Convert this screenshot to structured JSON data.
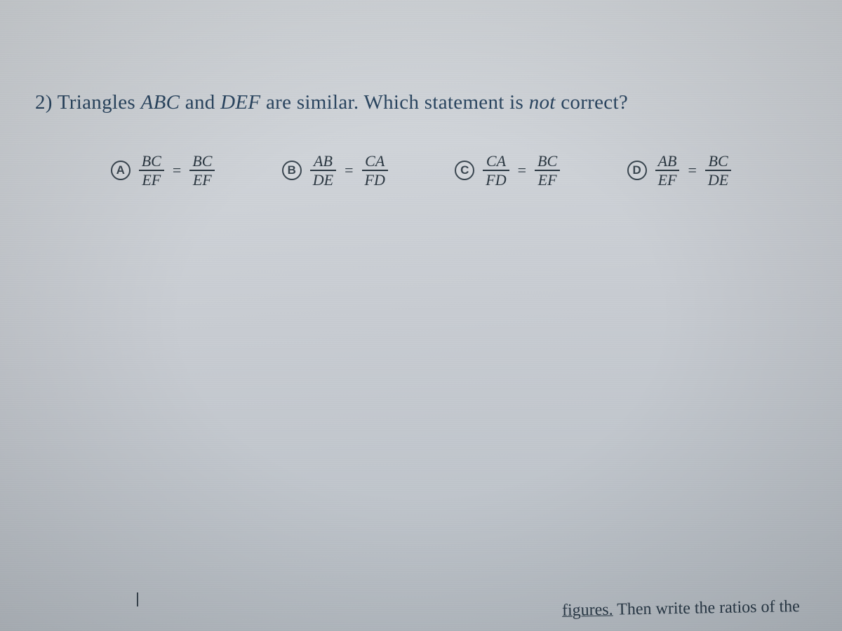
{
  "background_color_top": "#d8dce0",
  "background_color_bottom": "#b8bfc6",
  "text_color_primary": "#2a4560",
  "text_color_math": "#2a3640",
  "marker_border_color": "#3a4650",
  "question": {
    "number": "2)",
    "prefix": "Triangles",
    "t1": "ABC",
    "mid1": "and",
    "t2": "DEF",
    "mid2": "are similar. Which statement is",
    "neg": "not",
    "tail": "correct?",
    "fontsize": 29
  },
  "options": [
    {
      "letter": "A",
      "left_num": "BC",
      "left_den": "EF",
      "right_num": "BC",
      "right_den": "EF"
    },
    {
      "letter": "B",
      "left_num": "AB",
      "left_den": "DE",
      "right_num": "CA",
      "right_den": "FD"
    },
    {
      "letter": "C",
      "left_num": "CA",
      "left_den": "FD",
      "right_num": "BC",
      "right_den": "EF"
    },
    {
      "letter": "D",
      "left_num": "AB",
      "left_den": "EF",
      "right_num": "BC",
      "right_den": "DE"
    }
  ],
  "footer": {
    "fragment": "figures.",
    "then": "Then write the ratios of the",
    "fontsize": 24
  }
}
